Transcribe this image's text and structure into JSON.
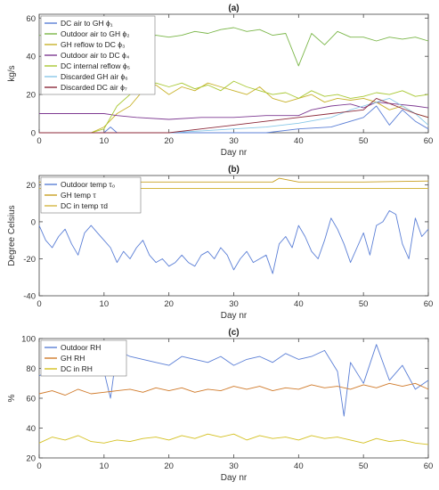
{
  "figure": {
    "panels": [
      "(a)",
      "(b)",
      "(c)"
    ]
  },
  "chart_data": [
    {
      "type": "line",
      "title": "(a)",
      "xlabel": "Day nr",
      "ylabel": "kg/s",
      "xlim": [
        0,
        60
      ],
      "ylim": [
        0,
        62
      ],
      "xticks": [
        0,
        10,
        20,
        30,
        40,
        50,
        60
      ],
      "yticks": [
        0,
        20,
        40,
        60
      ],
      "grid": false,
      "legend_position": "top-left",
      "series": [
        {
          "name": "DC air to GH ϕ₁",
          "color": "#5b7fd6",
          "x": [
            0,
            5,
            10,
            11,
            12,
            15,
            20,
            25,
            30,
            35,
            40,
            45,
            50,
            52,
            54,
            56,
            58,
            60
          ],
          "values": [
            0,
            0,
            0,
            3,
            0,
            0,
            0,
            0,
            0,
            0,
            2,
            3,
            8,
            14,
            4,
            12,
            6,
            2
          ]
        },
        {
          "name": "Outdoor air to GH ϕ₂",
          "color": "#7ab648",
          "x": [
            0,
            2,
            4,
            6,
            8,
            10,
            12,
            14,
            16,
            18,
            20,
            22,
            24,
            26,
            28,
            30,
            32,
            34,
            36,
            38,
            40,
            42,
            44,
            46,
            48,
            50,
            52,
            54,
            56,
            58,
            60
          ],
          "values": [
            51,
            50,
            51,
            50,
            52,
            51,
            50,
            52,
            49,
            51,
            50,
            51,
            53,
            52,
            54,
            55,
            53,
            54,
            51,
            52,
            35,
            52,
            46,
            53,
            50,
            50,
            48,
            50,
            49,
            50,
            48
          ]
        },
        {
          "name": "GH reflow to DC ϕ₃",
          "color": "#c8b22a",
          "x": [
            0,
            2,
            4,
            6,
            8,
            10,
            12,
            14,
            16,
            18,
            20,
            22,
            24,
            26,
            28,
            30,
            32,
            34,
            36,
            38,
            40,
            42,
            44,
            46,
            48,
            50,
            52,
            54,
            56,
            58,
            60
          ],
          "values": [
            0,
            0,
            0,
            0,
            0,
            3,
            10,
            14,
            22,
            25,
            20,
            24,
            22,
            26,
            24,
            22,
            20,
            24,
            18,
            16,
            18,
            20,
            16,
            18,
            17,
            18,
            16,
            12,
            14,
            10,
            8
          ]
        },
        {
          "name": "Outdoor air to DC ϕ₄",
          "color": "#7e3a92",
          "x": [
            0,
            5,
            10,
            12,
            15,
            20,
            25,
            30,
            35,
            40,
            42,
            45,
            48,
            50,
            52,
            55,
            58,
            60
          ],
          "values": [
            10,
            10,
            10,
            9,
            8,
            7,
            8,
            8,
            9,
            9,
            12,
            14,
            15,
            13,
            16,
            15,
            14,
            13
          ]
        },
        {
          "name": "DC internal reflow ϕ₅",
          "color": "#a8c832",
          "x": [
            0,
            2,
            4,
            6,
            8,
            10,
            12,
            14,
            16,
            18,
            20,
            22,
            24,
            26,
            28,
            30,
            32,
            34,
            36,
            38,
            40,
            42,
            44,
            46,
            48,
            50,
            52,
            54,
            56,
            58,
            60
          ],
          "values": [
            0,
            0,
            0,
            0,
            0,
            2,
            14,
            20,
            24,
            26,
            24,
            26,
            23,
            25,
            22,
            27,
            24,
            22,
            20,
            21,
            18,
            22,
            19,
            20,
            18,
            19,
            21,
            20,
            22,
            19,
            20
          ]
        },
        {
          "name": "Discarded GH air ϕ₆",
          "color": "#88c8e8",
          "x": [
            0,
            10,
            20,
            25,
            30,
            35,
            40,
            45,
            48,
            50,
            52,
            54,
            56,
            58,
            60
          ],
          "values": [
            0,
            0,
            0,
            1,
            2,
            3,
            5,
            8,
            12,
            14,
            16,
            18,
            14,
            10,
            4
          ]
        },
        {
          "name": "Discarded DC air ϕ₇",
          "color": "#8c2a3a",
          "x": [
            0,
            5,
            10,
            15,
            20,
            25,
            30,
            35,
            40,
            45,
            50,
            52,
            55,
            58,
            60
          ],
          "values": [
            0,
            0,
            0,
            0,
            0,
            2,
            4,
            6,
            8,
            10,
            12,
            18,
            14,
            10,
            8
          ]
        }
      ]
    },
    {
      "type": "line",
      "title": "(b)",
      "xlabel": "Day nr",
      "ylabel": "Degree Celsius",
      "xlim": [
        0,
        60
      ],
      "ylim": [
        -40,
        25
      ],
      "xticks": [
        0,
        10,
        20,
        30,
        40,
        50,
        60
      ],
      "yticks": [
        -40,
        -20,
        0,
        20
      ],
      "grid": false,
      "legend_position": "top-left",
      "series": [
        {
          "name": "Outdoor temp τ₀",
          "color": "#5b7fd6",
          "x": [
            0,
            1,
            2,
            3,
            4,
            5,
            6,
            7,
            8,
            9,
            10,
            11,
            12,
            13,
            14,
            15,
            16,
            17,
            18,
            19,
            20,
            21,
            22,
            23,
            24,
            25,
            26,
            27,
            28,
            29,
            30,
            31,
            32,
            33,
            34,
            35,
            36,
            37,
            38,
            39,
            40,
            41,
            42,
            43,
            44,
            45,
            46,
            47,
            48,
            49,
            50,
            51,
            52,
            53,
            54,
            55,
            56,
            57,
            58,
            59,
            60
          ],
          "values": [
            -2,
            -10,
            -14,
            -8,
            -4,
            -12,
            -18,
            -6,
            -2,
            -6,
            -10,
            -14,
            -22,
            -16,
            -20,
            -14,
            -10,
            -18,
            -22,
            -20,
            -24,
            -22,
            -18,
            -22,
            -24,
            -18,
            -16,
            -20,
            -14,
            -18,
            -26,
            -20,
            -16,
            -22,
            -20,
            -18,
            -28,
            -12,
            -8,
            -14,
            -2,
            -8,
            -16,
            -20,
            -10,
            2,
            -4,
            -12,
            -22,
            -14,
            -6,
            -18,
            -2,
            0,
            6,
            4,
            -12,
            -20,
            2,
            -8,
            -4
          ]
        },
        {
          "name": "GH temp τ",
          "color": "#c8a020",
          "x": [
            0,
            10,
            20,
            30,
            36,
            37,
            40,
            50,
            60
          ],
          "values": [
            21.5,
            21.5,
            21.5,
            21.5,
            21.5,
            23.5,
            21.5,
            21.5,
            22
          ]
        },
        {
          "name": "DC in temp τd",
          "color": "#d4b640",
          "x": [
            0,
            10,
            20,
            30,
            40,
            50,
            60
          ],
          "values": [
            18,
            18,
            18,
            18,
            18,
            18,
            18
          ]
        }
      ]
    },
    {
      "type": "line",
      "title": "(c)",
      "xlabel": "Day nr",
      "ylabel": "%",
      "xlim": [
        0,
        60
      ],
      "ylim": [
        20,
        100
      ],
      "xticks": [
        0,
        10,
        20,
        30,
        40,
        50,
        60
      ],
      "yticks": [
        20,
        40,
        60,
        80,
        100
      ],
      "grid": false,
      "legend_position": "top-left",
      "series": [
        {
          "name": "Outdoor RH",
          "color": "#5b7fd6",
          "x": [
            0,
            2,
            4,
            6,
            8,
            10,
            11,
            12,
            14,
            16,
            18,
            20,
            22,
            24,
            26,
            28,
            30,
            32,
            34,
            36,
            38,
            40,
            42,
            44,
            46,
            47,
            48,
            50,
            52,
            54,
            56,
            58,
            60
          ],
          "values": [
            75,
            80,
            86,
            88,
            84,
            78,
            60,
            92,
            88,
            86,
            84,
            82,
            88,
            86,
            84,
            88,
            82,
            86,
            88,
            84,
            90,
            86,
            88,
            92,
            78,
            48,
            84,
            70,
            96,
            72,
            82,
            66,
            72
          ]
        },
        {
          "name": "GH RH",
          "color": "#d07a2a",
          "x": [
            0,
            2,
            4,
            6,
            8,
            10,
            12,
            14,
            16,
            18,
            20,
            22,
            24,
            26,
            28,
            30,
            32,
            34,
            36,
            38,
            40,
            42,
            44,
            46,
            48,
            50,
            52,
            54,
            56,
            58,
            60
          ],
          "values": [
            63,
            65,
            62,
            66,
            63,
            64,
            65,
            66,
            64,
            67,
            65,
            67,
            64,
            66,
            65,
            68,
            66,
            68,
            65,
            67,
            66,
            69,
            67,
            68,
            66,
            69,
            67,
            70,
            68,
            70,
            66
          ]
        },
        {
          "name": "DC in RH",
          "color": "#d4c020",
          "x": [
            0,
            2,
            4,
            6,
            8,
            10,
            12,
            14,
            16,
            18,
            20,
            22,
            24,
            26,
            28,
            30,
            32,
            34,
            36,
            38,
            40,
            42,
            44,
            46,
            48,
            50,
            52,
            54,
            56,
            58,
            60
          ],
          "values": [
            30,
            34,
            32,
            35,
            31,
            30,
            32,
            31,
            33,
            34,
            32,
            35,
            33,
            36,
            34,
            36,
            32,
            35,
            33,
            34,
            32,
            35,
            33,
            34,
            32,
            30,
            33,
            31,
            32,
            30,
            29
          ]
        }
      ]
    }
  ]
}
